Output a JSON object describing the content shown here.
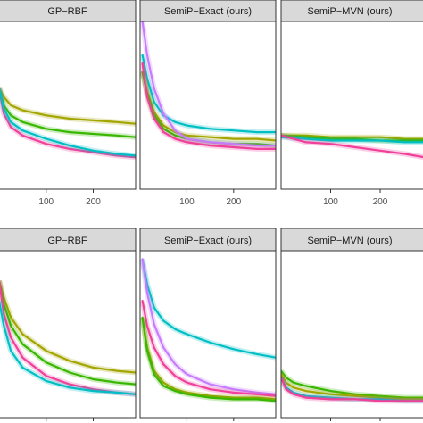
{
  "colors": {
    "strip_bg": "#d9d9d9",
    "panel_border": "#333333",
    "background": "#ffffff",
    "yellow_green": "#a3a500",
    "green": "#39b600",
    "cyan": "#00bfc4",
    "violet": "#c77cff",
    "red": "#f8766d",
    "pink": "#f0409a"
  },
  "chart_data": [
    {
      "type": "line",
      "title": "GP−RBF",
      "xlim": [
        0,
        290
      ],
      "ylim": [
        0,
        1
      ],
      "xticks": [
        100,
        200
      ],
      "xtick_labels": [
        "100",
        "200"
      ],
      "series": [
        {
          "color": "#a3a500",
          "x": [
            0,
            10,
            25,
            50,
            100,
            150,
            200,
            250,
            290
          ],
          "y": [
            0.6,
            0.55,
            0.5,
            0.47,
            0.44,
            0.42,
            0.41,
            0.4,
            0.39
          ]
        },
        {
          "color": "#39b600",
          "x": [
            0,
            10,
            25,
            50,
            100,
            150,
            200,
            250,
            290
          ],
          "y": [
            0.6,
            0.5,
            0.44,
            0.4,
            0.36,
            0.34,
            0.33,
            0.32,
            0.31
          ]
        },
        {
          "color": "#f0409a",
          "x": [
            0,
            10,
            25,
            50,
            100,
            150,
            200,
            250,
            290
          ],
          "y": [
            0.6,
            0.45,
            0.37,
            0.32,
            0.27,
            0.24,
            0.22,
            0.2,
            0.19
          ]
        },
        {
          "color": "#00bfc4",
          "x": [
            0,
            10,
            25,
            50,
            100,
            150,
            200,
            250,
            290
          ],
          "y": [
            0.6,
            0.48,
            0.4,
            0.35,
            0.3,
            0.26,
            0.23,
            0.21,
            0.2
          ]
        }
      ]
    },
    {
      "type": "line",
      "title": "SemiP−Exact (ours)",
      "xlim": [
        0,
        290
      ],
      "ylim": [
        0,
        1
      ],
      "xticks": [
        100,
        200
      ],
      "xtick_labels": [
        "100",
        "200"
      ],
      "series": [
        {
          "color": "#00bfc4",
          "x": [
            5,
            15,
            30,
            50,
            75,
            100,
            150,
            200,
            250,
            290
          ],
          "y": [
            0.8,
            0.66,
            0.52,
            0.44,
            0.4,
            0.38,
            0.36,
            0.35,
            0.34,
            0.34
          ]
        },
        {
          "color": "#a3a500",
          "x": [
            5,
            15,
            30,
            50,
            75,
            100,
            150,
            200,
            250,
            290
          ],
          "y": [
            0.7,
            0.58,
            0.46,
            0.38,
            0.34,
            0.32,
            0.31,
            0.3,
            0.3,
            0.29
          ]
        },
        {
          "color": "#39b600",
          "x": [
            5,
            15,
            30,
            50,
            75,
            100,
            150,
            200,
            250,
            290
          ],
          "y": [
            0.7,
            0.57,
            0.44,
            0.36,
            0.32,
            0.3,
            0.28,
            0.27,
            0.27,
            0.26
          ]
        },
        {
          "color": "#c77cff",
          "x": [
            5,
            15,
            30,
            50,
            75,
            100,
            150,
            200,
            250,
            290
          ],
          "y": [
            1.0,
            0.8,
            0.6,
            0.45,
            0.35,
            0.3,
            0.28,
            0.27,
            0.26,
            0.26
          ]
        },
        {
          "color": "#f0409a",
          "x": [
            5,
            15,
            30,
            50,
            75,
            100,
            150,
            200,
            250,
            290
          ],
          "y": [
            0.75,
            0.55,
            0.42,
            0.34,
            0.3,
            0.28,
            0.26,
            0.25,
            0.24,
            0.24
          ]
        }
      ]
    },
    {
      "type": "line",
      "title": "SemiP−MVN (ours)",
      "xlim": [
        0,
        290
      ],
      "ylim": [
        0,
        1
      ],
      "xticks": [
        100,
        200
      ],
      "xtick_labels": [
        "100",
        "200"
      ],
      "series": [
        {
          "color": "#a3a500",
          "x": [
            0,
            50,
            100,
            150,
            200,
            250,
            290
          ],
          "y": [
            0.32,
            0.32,
            0.31,
            0.31,
            0.31,
            0.3,
            0.3
          ]
        },
        {
          "color": "#39b600",
          "x": [
            0,
            50,
            100,
            150,
            200,
            250,
            290
          ],
          "y": [
            0.32,
            0.31,
            0.3,
            0.3,
            0.29,
            0.29,
            0.29
          ]
        },
        {
          "color": "#00bfc4",
          "x": [
            0,
            50,
            100,
            150,
            200,
            250,
            290
          ],
          "y": [
            0.31,
            0.3,
            0.29,
            0.29,
            0.29,
            0.28,
            0.28
          ]
        },
        {
          "color": "#f0409a",
          "x": [
            0,
            25,
            50,
            100,
            150,
            200,
            250,
            290
          ],
          "y": [
            0.32,
            0.3,
            0.28,
            0.27,
            0.25,
            0.23,
            0.21,
            0.19
          ]
        }
      ]
    },
    {
      "type": "line",
      "title": "GP−RBF",
      "xlim": [
        0,
        290
      ],
      "ylim": [
        0,
        1
      ],
      "xticks": [
        100,
        200
      ],
      "xtick_labels": [
        "",
        ""
      ],
      "series": [
        {
          "color": "#a3a500",
          "x": [
            0,
            10,
            25,
            50,
            100,
            150,
            200,
            250,
            290
          ],
          "y": [
            0.82,
            0.72,
            0.6,
            0.5,
            0.4,
            0.34,
            0.3,
            0.28,
            0.27
          ]
        },
        {
          "color": "#39b600",
          "x": [
            0,
            10,
            25,
            50,
            100,
            150,
            200,
            250,
            290
          ],
          "y": [
            0.82,
            0.68,
            0.55,
            0.44,
            0.33,
            0.27,
            0.23,
            0.21,
            0.2
          ]
        },
        {
          "color": "#f0409a",
          "x": [
            0,
            10,
            25,
            50,
            100,
            150,
            200,
            250,
            290
          ],
          "y": [
            0.82,
            0.62,
            0.48,
            0.36,
            0.25,
            0.2,
            0.17,
            0.15,
            0.14
          ]
        },
        {
          "color": "#00bfc4",
          "x": [
            0,
            10,
            25,
            50,
            100,
            150,
            200,
            250,
            290
          ],
          "y": [
            0.7,
            0.55,
            0.4,
            0.3,
            0.22,
            0.18,
            0.16,
            0.15,
            0.14
          ]
        }
      ]
    },
    {
      "type": "line",
      "title": "SemiP−Exact (ours)",
      "xlim": [
        0,
        290
      ],
      "ylim": [
        0,
        1
      ],
      "xticks": [
        100,
        200
      ],
      "xtick_labels": [
        "",
        ""
      ],
      "series": [
        {
          "color": "#00bfc4",
          "x": [
            5,
            15,
            30,
            50,
            75,
            100,
            150,
            200,
            250,
            290
          ],
          "y": [
            0.95,
            0.8,
            0.66,
            0.58,
            0.53,
            0.5,
            0.45,
            0.41,
            0.38,
            0.36
          ]
        },
        {
          "color": "#c77cff",
          "x": [
            5,
            15,
            30,
            50,
            75,
            100,
            150,
            200,
            250,
            290
          ],
          "y": [
            0.95,
            0.75,
            0.56,
            0.42,
            0.32,
            0.26,
            0.2,
            0.17,
            0.15,
            0.14
          ]
        },
        {
          "color": "#f0409a",
          "x": [
            5,
            15,
            30,
            50,
            75,
            100,
            150,
            200,
            250,
            290
          ],
          "y": [
            0.7,
            0.55,
            0.42,
            0.32,
            0.25,
            0.21,
            0.17,
            0.15,
            0.14,
            0.13
          ]
        },
        {
          "color": "#a3a500",
          "x": [
            5,
            15,
            30,
            50,
            75,
            100,
            150,
            200,
            250,
            290
          ],
          "y": [
            0.6,
            0.42,
            0.28,
            0.21,
            0.17,
            0.15,
            0.13,
            0.12,
            0.12,
            0.11
          ]
        },
        {
          "color": "#39b600",
          "x": [
            5,
            15,
            30,
            50,
            75,
            100,
            150,
            200,
            250,
            290
          ],
          "y": [
            0.6,
            0.4,
            0.26,
            0.19,
            0.16,
            0.14,
            0.12,
            0.11,
            0.11,
            0.1
          ]
        }
      ]
    },
    {
      "type": "line",
      "title": "SemiP−MVN (ours)",
      "xlim": [
        0,
        290
      ],
      "ylim": [
        0,
        1
      ],
      "xticks": [
        100,
        200
      ],
      "xtick_labels": [
        "",
        ""
      ],
      "series": [
        {
          "color": "#39b600",
          "x": [
            0,
            10,
            25,
            50,
            100,
            150,
            200,
            250,
            290
          ],
          "y": [
            0.28,
            0.24,
            0.21,
            0.19,
            0.16,
            0.14,
            0.13,
            0.12,
            0.12
          ]
        },
        {
          "color": "#a3a500",
          "x": [
            0,
            10,
            25,
            50,
            100,
            150,
            200,
            250,
            290
          ],
          "y": [
            0.26,
            0.21,
            0.18,
            0.16,
            0.14,
            0.13,
            0.12,
            0.11,
            0.11
          ]
        },
        {
          "color": "#00bfc4",
          "x": [
            0,
            10,
            25,
            50,
            100,
            150,
            200,
            250,
            290
          ],
          "y": [
            0.24,
            0.18,
            0.15,
            0.13,
            0.12,
            0.11,
            0.11,
            0.1,
            0.1
          ]
        },
        {
          "color": "#f0409a",
          "x": [
            0,
            10,
            25,
            50,
            100,
            150,
            200,
            250,
            290
          ],
          "y": [
            0.24,
            0.17,
            0.14,
            0.12,
            0.11,
            0.11,
            0.1,
            0.1,
            0.1
          ]
        }
      ]
    }
  ]
}
